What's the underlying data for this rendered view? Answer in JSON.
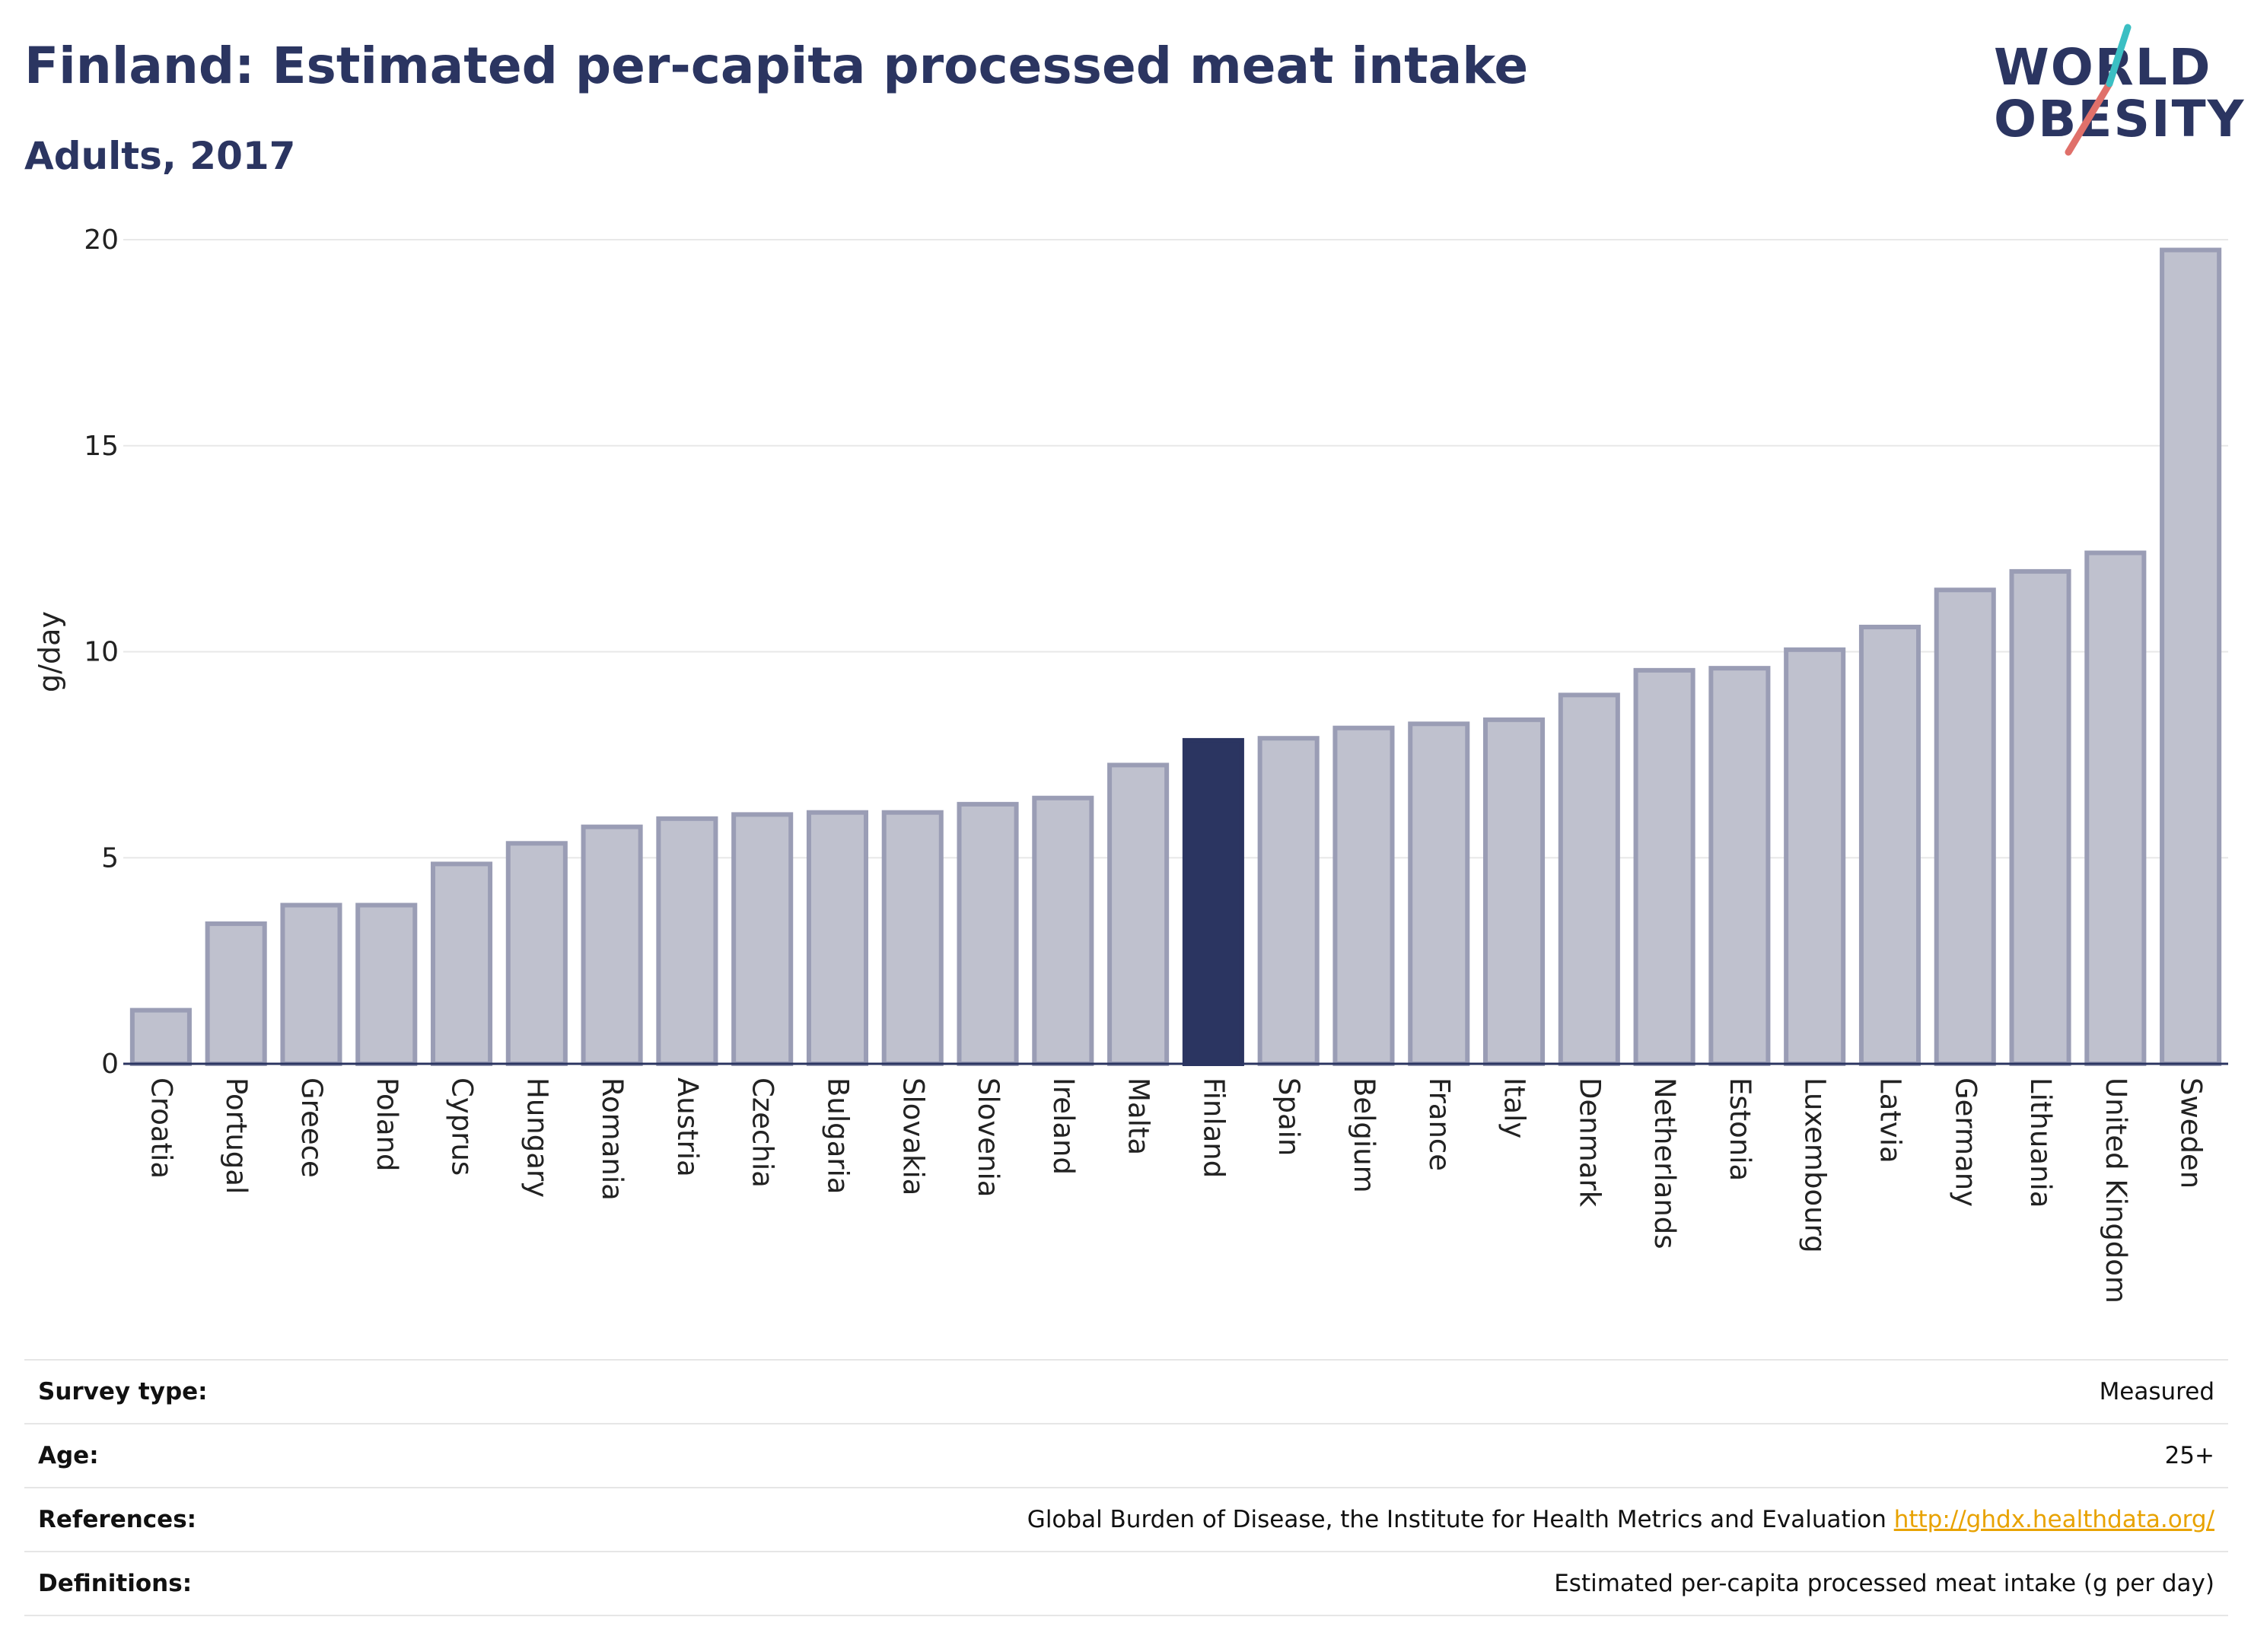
{
  "title": "Finland: Estimated per-capita processed meat intake",
  "subtitle": "Adults, 2017",
  "logo": {
    "line1": "WORLD",
    "line2": "OBESITY"
  },
  "colors": {
    "highlight": "#2b3561",
    "bar_fill": "#bfc1ce",
    "bar_stroke": "#9a9db5",
    "text": "#2b3561",
    "link": "#e8a200",
    "logo_teal": "#3bbfc3",
    "logo_coral": "#e0706a"
  },
  "chart_data": {
    "type": "bar",
    "title": "Finland: Estimated per-capita processed meat intake",
    "subtitle": "Adults, 2017",
    "xlabel": "",
    "ylabel": "g/day",
    "ylim": [
      0,
      20
    ],
    "yticks": [
      0,
      5,
      10,
      15,
      20
    ],
    "grid": true,
    "highlight": "Finland",
    "categories": [
      "Croatia",
      "Portugal",
      "Greece",
      "Poland",
      "Cyprus",
      "Hungary",
      "Romania",
      "Austria",
      "Czechia",
      "Bulgaria",
      "Slovakia",
      "Slovenia",
      "Ireland",
      "Malta",
      "Finland",
      "Spain",
      "Belgium",
      "France",
      "Italy",
      "Denmark",
      "Netherlands",
      "Estonia",
      "Luxembourg",
      "Latvia",
      "Germany",
      "Lithuania",
      "United Kingdom",
      "Sweden"
    ],
    "values": [
      1.3,
      3.4,
      3.85,
      3.85,
      4.85,
      5.35,
      5.75,
      5.95,
      6.05,
      6.1,
      6.1,
      6.3,
      6.45,
      7.25,
      7.85,
      7.9,
      8.15,
      8.25,
      8.35,
      8.95,
      9.55,
      9.6,
      10.05,
      10.6,
      11.5,
      11.95,
      12.4,
      19.75
    ]
  },
  "info": [
    {
      "label": "Survey type:",
      "value": "Measured"
    },
    {
      "label": "Age:",
      "value": "25+"
    },
    {
      "label": "References:",
      "value": "Global Burden of Disease, the Institute for Health Metrics and Evaluation",
      "link": "http://ghdx.healthdata.org/"
    },
    {
      "label": "Definitions:",
      "value": "Estimated per-capita processed meat intake (g per day)"
    }
  ]
}
